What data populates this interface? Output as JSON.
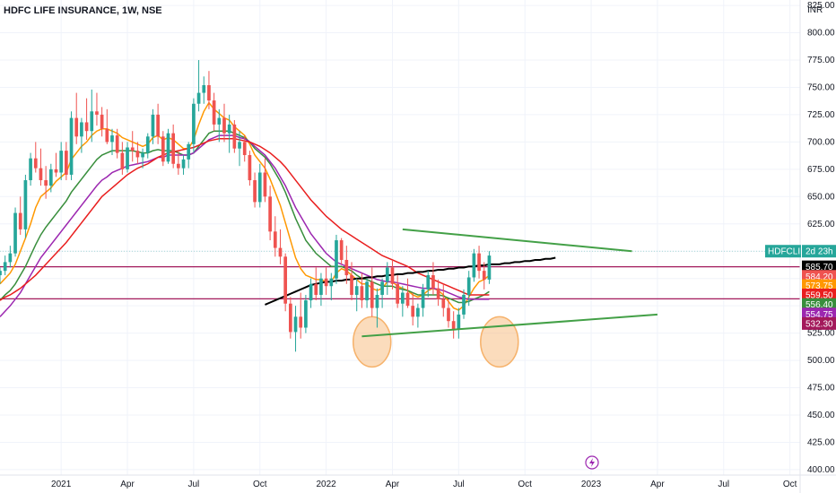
{
  "header": {
    "title": "HDFC LIFE INSURANCE, 1W, NSE",
    "currency": "INR"
  },
  "colors": {
    "up": "#26a69a",
    "down": "#ef5350",
    "ema_fast": "#ff9800",
    "ema_mid": "#388e3c",
    "ema_slow": "#9c27b0",
    "ema_long": "#e91e1e",
    "sma_200": "#000000",
    "trendline": "#43a047",
    "resistance_line": "#a3195b",
    "ellipse": "#f6b26b"
  },
  "chart_data": {
    "type": "candlestick",
    "title": "HDFC LIFE INSURANCE, 1W, NSE",
    "ylim": [
      395,
      830
    ],
    "y_ticks": [
      400,
      425,
      450,
      475,
      500,
      525,
      550,
      575,
      600,
      625,
      650,
      675,
      700,
      725,
      750,
      775,
      800,
      825
    ],
    "y_tick_labels": [
      "400.00",
      "425.00",
      "450.00",
      "475.00",
      "500.00",
      "525.00",
      "550.00",
      "575.00",
      "600.00",
      "625.00",
      "650.00",
      "675.00",
      "700.00",
      "725.00",
      "750.00",
      "775.00",
      "800.00",
      "825.00"
    ],
    "x_labels": [
      "2021",
      "Apr",
      "Jul",
      "Oct",
      "2022",
      "Apr",
      "Jul",
      "Oct",
      "2023",
      "Apr",
      "Jul",
      "Oct"
    ],
    "x_label_weeks": [
      0,
      13,
      26,
      39,
      52,
      65,
      78,
      91,
      104,
      117,
      130,
      143
    ],
    "x_range_weeks": [
      -12,
      145
    ],
    "candles": [
      [
        578,
        585,
        570,
        582
      ],
      [
        582,
        596,
        578,
        590
      ],
      [
        590,
        605,
        585,
        598
      ],
      [
        598,
        640,
        595,
        635
      ],
      [
        635,
        650,
        615,
        620
      ],
      [
        620,
        670,
        612,
        665
      ],
      [
        665,
        690,
        660,
        685
      ],
      [
        685,
        700,
        672,
        676
      ],
      [
        676,
        694,
        660,
        665
      ],
      [
        665,
        678,
        648,
        660
      ],
      [
        660,
        680,
        654,
        675
      ],
      [
        675,
        690,
        668,
        672
      ],
      [
        672,
        700,
        665,
        692
      ],
      [
        692,
        700,
        665,
        670
      ],
      [
        670,
        728,
        665,
        722
      ],
      [
        722,
        745,
        698,
        705
      ],
      [
        705,
        722,
        690,
        718
      ],
      [
        718,
        740,
        702,
        710
      ],
      [
        710,
        748,
        700,
        728
      ],
      [
        728,
        745,
        715,
        725
      ],
      [
        725,
        732,
        705,
        712
      ],
      [
        712,
        730,
        698,
        700
      ],
      [
        700,
        712,
        688,
        706
      ],
      [
        706,
        712,
        685,
        690
      ],
      [
        690,
        700,
        670,
        675
      ],
      [
        675,
        700,
        672,
        695
      ],
      [
        695,
        710,
        682,
        692
      ],
      [
        692,
        700,
        680,
        686
      ],
      [
        686,
        694,
        676,
        690
      ],
      [
        690,
        708,
        685,
        705
      ],
      [
        705,
        730,
        698,
        725
      ],
      [
        725,
        735,
        698,
        705
      ],
      [
        705,
        710,
        678,
        682
      ],
      [
        682,
        712,
        680,
        708
      ],
      [
        708,
        716,
        676,
        680
      ],
      [
        680,
        692,
        670,
        676
      ],
      [
        676,
        688,
        670,
        684
      ],
      [
        684,
        700,
        676,
        698
      ],
      [
        698,
        740,
        690,
        735
      ],
      [
        735,
        775,
        728,
        745
      ],
      [
        745,
        760,
        735,
        752
      ],
      [
        752,
        765,
        730,
        738
      ],
      [
        738,
        745,
        710,
        716
      ],
      [
        716,
        730,
        700,
        722
      ],
      [
        722,
        735,
        700,
        708
      ],
      [
        708,
        725,
        690,
        716
      ],
      [
        716,
        720,
        690,
        694
      ],
      [
        694,
        710,
        678,
        700
      ],
      [
        700,
        706,
        682,
        688
      ],
      [
        688,
        692,
        660,
        665
      ],
      [
        665,
        672,
        640,
        645
      ],
      [
        645,
        680,
        640,
        672
      ],
      [
        672,
        685,
        645,
        650
      ],
      [
        650,
        660,
        610,
        618
      ],
      [
        618,
        632,
        595,
        603
      ],
      [
        603,
        620,
        588,
        595
      ],
      [
        595,
        598,
        545,
        552
      ],
      [
        552,
        558,
        520,
        526
      ],
      [
        526,
        550,
        508,
        540
      ],
      [
        540,
        562,
        520,
        530
      ],
      [
        530,
        560,
        525,
        555
      ],
      [
        555,
        575,
        548,
        570
      ],
      [
        570,
        585,
        555,
        560
      ],
      [
        560,
        580,
        550,
        575
      ],
      [
        575,
        585,
        560,
        568
      ],
      [
        568,
        580,
        555,
        575
      ],
      [
        575,
        615,
        570,
        610
      ],
      [
        610,
        612,
        588,
        592
      ],
      [
        592,
        605,
        570,
        578
      ],
      [
        578,
        590,
        555,
        560
      ],
      [
        560,
        575,
        545,
        568
      ],
      [
        568,
        580,
        548,
        555
      ],
      [
        555,
        575,
        548,
        572
      ],
      [
        572,
        585,
        540,
        548
      ],
      [
        548,
        566,
        530,
        560
      ],
      [
        560,
        575,
        548,
        572
      ],
      [
        572,
        590,
        560,
        585
      ],
      [
        585,
        592,
        565,
        570
      ],
      [
        570,
        578,
        548,
        552
      ],
      [
        552,
        568,
        540,
        562
      ],
      [
        562,
        575,
        548,
        550
      ],
      [
        550,
        562,
        532,
        540
      ],
      [
        540,
        552,
        530,
        548
      ],
      [
        548,
        570,
        540,
        565
      ],
      [
        565,
        582,
        558,
        578
      ],
      [
        578,
        590,
        560,
        566
      ],
      [
        566,
        574,
        550,
        556
      ],
      [
        556,
        570,
        540,
        548
      ],
      [
        548,
        556,
        530,
        536
      ],
      [
        536,
        545,
        520,
        528
      ],
      [
        528,
        548,
        520,
        542
      ],
      [
        542,
        565,
        538,
        560
      ],
      [
        560,
        582,
        550,
        576
      ],
      [
        576,
        602,
        572,
        598
      ],
      [
        598,
        605,
        575,
        582
      ],
      [
        582,
        590,
        565,
        574
      ],
      [
        574,
        600,
        570,
        596
      ]
    ],
    "series": [
      {
        "name": "EMA fast",
        "values": [
          570,
          575,
          580,
          588,
          600,
          612,
          625,
          640,
          650,
          654,
          658,
          664,
          668,
          672,
          684,
          690,
          696,
          700,
          706,
          710,
          712,
          712,
          710,
          708,
          704,
          702,
          700,
          698,
          696,
          698,
          704,
          706,
          702,
          704,
          702,
          698,
          694,
          694,
          702,
          716,
          728,
          736,
          730,
          726,
          722,
          720,
          714,
          710,
          706,
          698,
          688,
          682,
          676,
          666,
          654,
          642,
          626,
          610,
          594,
          584,
          578,
          576,
          574,
          574,
          572,
          572,
          580,
          584,
          582,
          578,
          574,
          570,
          570,
          566,
          564,
          566,
          572,
          572,
          568,
          566,
          564,
          560,
          558,
          560,
          564,
          566,
          564,
          560,
          554,
          548,
          546,
          550,
          558,
          566,
          572,
          574,
          578
        ]
      },
      {
        "name": "EMA mid",
        "values": [
          555,
          560,
          564,
          570,
          578,
          586,
          596,
          606,
          615,
          622,
          628,
          634,
          640,
          646,
          654,
          660,
          666,
          672,
          678,
          684,
          688,
          690,
          692,
          692,
          692,
          692,
          692,
          691,
          690,
          690,
          692,
          693,
          692,
          692,
          692,
          690,
          688,
          688,
          690,
          696,
          702,
          708,
          710,
          710,
          710,
          710,
          708,
          706,
          704,
          700,
          694,
          690,
          686,
          680,
          672,
          664,
          654,
          642,
          630,
          620,
          610,
          604,
          598,
          594,
          590,
          586,
          586,
          586,
          584,
          582,
          578,
          575,
          574,
          572,
          570,
          568,
          568,
          568,
          566,
          565,
          564,
          562,
          560,
          560,
          560,
          560,
          560,
          559,
          557,
          555,
          553,
          553,
          554,
          556,
          558,
          560,
          563
        ]
      },
      {
        "name": "EMA slow",
        "values": [
          540,
          545,
          550,
          556,
          562,
          570,
          578,
          586,
          594,
          600,
          606,
          612,
          618,
          624,
          630,
          636,
          642,
          648,
          654,
          660,
          665,
          668,
          672,
          674,
          676,
          678,
          679,
          680,
          681,
          682,
          684,
          686,
          686,
          688,
          688,
          688,
          688,
          688,
          690,
          694,
          698,
          702,
          704,
          706,
          706,
          706,
          706,
          704,
          703,
          700,
          696,
          692,
          688,
          682,
          676,
          668,
          660,
          650,
          640,
          632,
          624,
          616,
          610,
          604,
          598,
          594,
          590,
          588,
          586,
          584,
          582,
          580,
          578,
          576,
          574,
          573,
          572,
          572,
          571,
          570,
          569,
          568,
          567,
          566,
          566,
          566,
          565,
          564,
          562,
          560,
          558,
          557,
          556,
          556,
          556,
          556,
          556
        ]
      },
      {
        "name": "EMA long",
        "values": [
          555,
          558,
          560,
          563,
          566,
          570,
          574,
          578,
          583,
          588,
          593,
          598,
          603,
          608,
          614,
          620,
          626,
          632,
          638,
          644,
          650,
          654,
          658,
          662,
          666,
          670,
          673,
          676,
          678,
          680,
          683,
          686,
          688,
          690,
          691,
          692,
          693,
          694,
          695,
          697,
          699,
          701,
          702,
          703,
          703,
          703,
          703,
          702,
          701,
          700,
          698,
          696,
          693,
          690,
          686,
          682,
          677,
          671,
          665,
          659,
          653,
          647,
          642,
          637,
          632,
          628,
          624,
          620,
          617,
          614,
          611,
          608,
          605,
          602,
          599,
          596,
          594,
          592,
          590,
          588,
          586,
          583,
          580,
          578,
          576,
          574,
          572,
          570,
          568,
          566,
          564,
          562,
          560,
          560,
          560,
          560,
          560
        ]
      }
    ],
    "sma_200": {
      "start_week": 40,
      "values": [
        551,
        553,
        555,
        557,
        559,
        561,
        563,
        565,
        567,
        569,
        570,
        571,
        572,
        572,
        573,
        573,
        574,
        574,
        575,
        575,
        576,
        576,
        577,
        577,
        578,
        578,
        579,
        579,
        580,
        580,
        581,
        581,
        582,
        582,
        583,
        583,
        584,
        584,
        585,
        585,
        586,
        586,
        587,
        587,
        588,
        588,
        588,
        589,
        589,
        590,
        590,
        591,
        591,
        592,
        592,
        593,
        593,
        594
      ]
    },
    "trendlines": [
      {
        "from": [
          67,
          620
        ],
        "to": [
          112,
          600
        ]
      },
      {
        "from": [
          59,
          522
        ],
        "to": [
          117,
          542
        ]
      }
    ],
    "horizontal_levels": [
      585.7,
      556.4
    ],
    "ellipse_weeks": [
      61,
      86
    ],
    "right_labels": [
      {
        "label": "HDFCLIFE",
        "value": "2d 23h",
        "price": 600,
        "color": "#26a69a"
      },
      {
        "label": "",
        "value": "585.70",
        "price": 585.7,
        "color": "#000000"
      },
      {
        "label": "",
        "value": "584.20",
        "price": 577,
        "color": "#ef5350"
      },
      {
        "label": "",
        "value": "573.75",
        "price": 568.5,
        "color": "#ff9800"
      },
      {
        "label": "",
        "value": "559.50",
        "price": 560,
        "color": "#e91e1e"
      },
      {
        "label": "",
        "value": "556.40",
        "price": 551.2,
        "color": "#388e3c"
      },
      {
        "label": "",
        "value": "554.75",
        "price": 542.5,
        "color": "#9c27b0"
      },
      {
        "label": "",
        "value": "532.30",
        "price": 533.8,
        "color": "#a3195b"
      }
    ]
  }
}
